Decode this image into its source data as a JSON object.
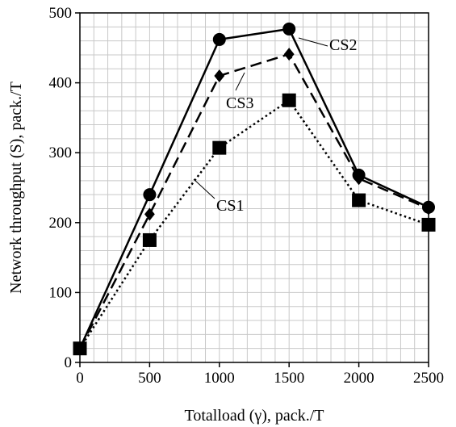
{
  "chart_data": {
    "type": "line",
    "title": "",
    "xlabel": "Totalload (γ), pack./T",
    "ylabel": "Network throughput (S), pack./T",
    "xlim": [
      0,
      2500
    ],
    "ylim": [
      0,
      500
    ],
    "xticks": [
      "0",
      "500",
      "1000",
      "1500",
      "2000",
      "2500"
    ],
    "yticks": [
      "0",
      "100",
      "200",
      "300",
      "400",
      "500"
    ],
    "grid": true,
    "x": [
      0,
      500,
      1000,
      1500,
      2000,
      2500
    ],
    "series": [
      {
        "name": "CS2",
        "values": [
          20,
          240,
          462,
          477,
          268,
          222
        ],
        "line": "solid",
        "marker": "circle",
        "color": "#000000"
      },
      {
        "name": "CS3",
        "values": [
          20,
          212,
          410,
          441,
          263,
          220
        ],
        "line": "dashed",
        "marker": "diamond",
        "color": "#000000"
      },
      {
        "name": "CS1",
        "values": [
          20,
          175,
          307,
          375,
          232,
          197
        ],
        "line": "dotted",
        "marker": "square",
        "color": "#000000"
      }
    ]
  }
}
